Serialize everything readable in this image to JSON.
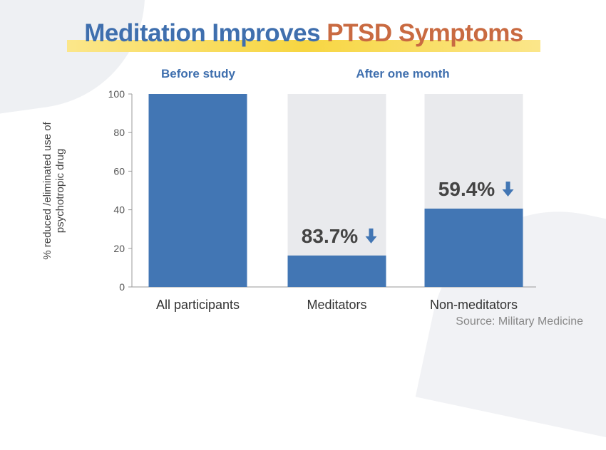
{
  "title": {
    "part1": "Meditation Improves",
    "part2": "PTSD Symptoms"
  },
  "group_labels": {
    "before": "Before study",
    "after": "After one month"
  },
  "source": "Source: Military Medicine",
  "colors": {
    "bar": "#4276b4",
    "background_bar": "#e9eaed",
    "title_blue": "#3f6fae",
    "title_orange": "#c96a41",
    "highlight": "#f7d642",
    "arrow": "#4276b4"
  },
  "chart_data": {
    "type": "bar",
    "title": "Meditation Improves PTSD Symptoms",
    "ylabel": "% reduced /eliminated use of psychotropic drug",
    "xlabel": "",
    "ylim": [
      0,
      100
    ],
    "yticks": [
      0,
      20,
      40,
      60,
      80,
      100
    ],
    "grid": false,
    "categories": [
      "All participants",
      "Meditators",
      "Non-meditators"
    ],
    "values": [
      100,
      16.3,
      40.6
    ],
    "background_values": [
      null,
      100,
      100
    ],
    "annotations": [
      null,
      {
        "text": "83.7%",
        "icon": "arrow-down-icon"
      },
      {
        "text": "59.4%",
        "icon": "arrow-down-icon"
      }
    ]
  }
}
